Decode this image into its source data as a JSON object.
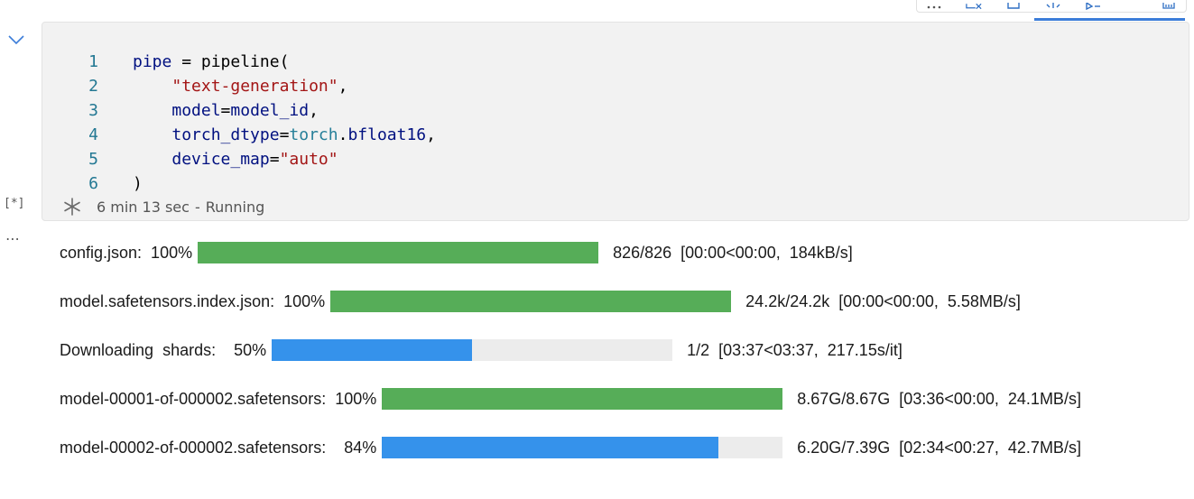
{
  "cell": {
    "code_lines": [
      {
        "num": "1",
        "tokens": [
          {
            "t": "pipe",
            "c": "default"
          },
          {
            "t": " = ",
            "c": "punc"
          },
          {
            "t": "pipeline",
            "c": "fn"
          },
          {
            "t": "(",
            "c": "punc"
          }
        ]
      },
      {
        "num": "2",
        "tokens": [
          {
            "t": "    ",
            "c": "punc"
          },
          {
            "t": "\"text-generation\"",
            "c": "str"
          },
          {
            "t": ",",
            "c": "punc"
          }
        ]
      },
      {
        "num": "3",
        "tokens": [
          {
            "t": "    ",
            "c": "punc"
          },
          {
            "t": "model",
            "c": "default"
          },
          {
            "t": "=",
            "c": "punc"
          },
          {
            "t": "model_id",
            "c": "default"
          },
          {
            "t": ",",
            "c": "punc"
          }
        ]
      },
      {
        "num": "4",
        "tokens": [
          {
            "t": "    ",
            "c": "punc"
          },
          {
            "t": "torch_dtype",
            "c": "default"
          },
          {
            "t": "=",
            "c": "punc"
          },
          {
            "t": "torch",
            "c": "mod"
          },
          {
            "t": ".",
            "c": "punc"
          },
          {
            "t": "bfloat16",
            "c": "default"
          },
          {
            "t": ",",
            "c": "punc"
          }
        ]
      },
      {
        "num": "5",
        "tokens": [
          {
            "t": "    ",
            "c": "punc"
          },
          {
            "t": "device_map",
            "c": "default"
          },
          {
            "t": "=",
            "c": "punc"
          },
          {
            "t": "\"auto\"",
            "c": "str"
          }
        ]
      },
      {
        "num": "6",
        "tokens": [
          {
            "t": ")",
            "c": "punc"
          }
        ]
      }
    ],
    "execution_count": "[*]",
    "status": {
      "elapsed": "6 min 13 sec",
      "separator": "-",
      "state": "Running"
    },
    "output_menu": "⋯"
  },
  "output": {
    "progress_rows": [
      {
        "label": "config.json:  100%",
        "percent": 100,
        "state": "done",
        "info": "826/826  [00:00<00:00,  184kB/s]"
      },
      {
        "label": "model.safetensors.index.json:  100%",
        "percent": 100,
        "state": "done",
        "info": "24.2k/24.2k  [00:00<00:00,  5.58MB/s]"
      },
      {
        "label": "Downloading  shards:    50%",
        "percent": 50,
        "state": "prog",
        "info": "1/2  [03:37<03:37,  217.15s/it]"
      },
      {
        "label": "model-00001-of-000002.safetensors:  100%",
        "percent": 100,
        "state": "done",
        "info": "8.67G/8.67G  [03:36<00:00,  24.1MB/s]"
      },
      {
        "label": "model-00002-of-000002.safetensors:    84%",
        "percent": 84,
        "state": "prog",
        "info": "6.20G/7.39G  [02:34<00:27,  42.7MB/s]"
      }
    ]
  },
  "colors": {
    "done": "#56ad58",
    "progress": "#3592eb",
    "track": "#ececec",
    "string": "#a31515",
    "identifier": "#001080",
    "module": "#267f99",
    "line_number": "#237893"
  }
}
